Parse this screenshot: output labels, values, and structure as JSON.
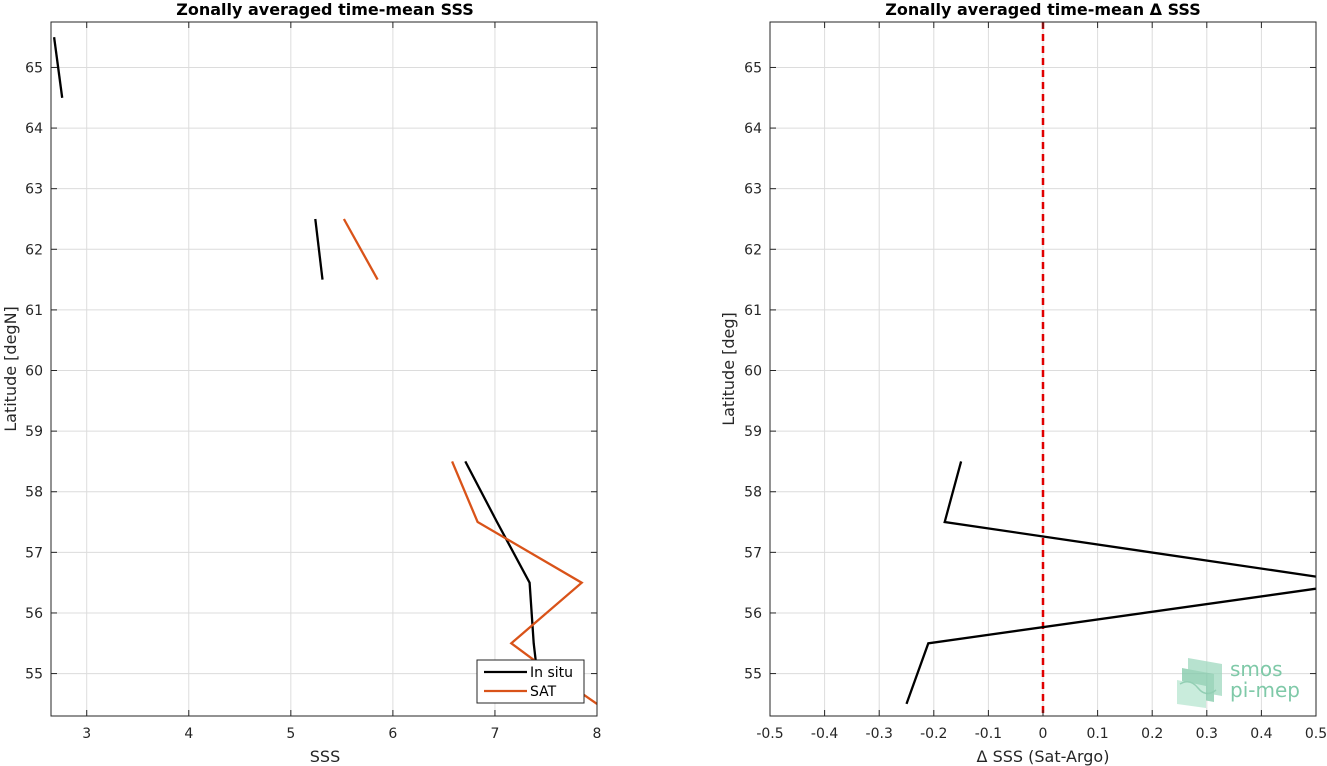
{
  "chart_data": [
    {
      "type": "line",
      "title": "Zonally averaged time-mean SSS",
      "xlabel": "SSS",
      "ylabel": "Latitude [degN]",
      "xlim": [
        2.65,
        8.0
      ],
      "ylim": [
        54.3,
        65.75
      ],
      "xticks": [
        3,
        4,
        5,
        6,
        7,
        8
      ],
      "yticks": [
        55,
        56,
        57,
        58,
        59,
        60,
        61,
        62,
        63,
        64,
        65
      ],
      "grid": true,
      "legend_position": "bottom-right",
      "series": [
        {
          "name": "In situ",
          "color": "#000000",
          "segments": [
            [
              [
                2.68,
                65.5
              ],
              [
                2.76,
                64.5
              ]
            ],
            [
              [
                5.24,
                62.5
              ],
              [
                5.31,
                61.5
              ]
            ],
            [
              [
                6.71,
                58.5
              ],
              [
                7.02,
                57.5
              ],
              [
                7.34,
                56.5
              ],
              [
                7.38,
                55.5
              ],
              [
                7.4,
                55.2
              ]
            ]
          ]
        },
        {
          "name": "SAT",
          "color": "#d95319",
          "segments": [
            [
              [
                5.52,
                62.5
              ],
              [
                5.85,
                61.5
              ]
            ],
            [
              [
                6.58,
                58.5
              ],
              [
                6.83,
                57.5
              ],
              [
                7.85,
                56.5
              ],
              [
                7.16,
                55.5
              ],
              [
                7.4,
                55.2
              ],
              [
                8.0,
                54.5
              ]
            ]
          ]
        }
      ]
    },
    {
      "type": "line",
      "title": "Zonally averaged time-mean Δ SSS",
      "xlabel": "Δ SSS (Sat-Argo)",
      "ylabel": "Latitude [deg]",
      "xlim": [
        -0.5,
        0.5
      ],
      "ylim": [
        54.3,
        65.75
      ],
      "xticks": [
        -0.5,
        -0.4,
        -0.3,
        -0.2,
        -0.1,
        0,
        0.1,
        0.2,
        0.3,
        0.4,
        0.5
      ],
      "yticks": [
        55,
        56,
        57,
        58,
        59,
        60,
        61,
        62,
        63,
        64,
        65
      ],
      "grid": true,
      "reference_line": {
        "x": 0,
        "color": "#e00000",
        "style": "dashed"
      },
      "series": [
        {
          "color": "#000000",
          "segments": [
            [
              [
                -0.25,
                54.5
              ],
              [
                -0.21,
                55.5
              ],
              [
                0.5,
                56.4
              ]
            ],
            [
              [
                0.5,
                56.6
              ],
              [
                -0.18,
                57.5
              ],
              [
                -0.15,
                58.5
              ]
            ]
          ]
        }
      ]
    }
  ],
  "logo": {
    "line1": "smos",
    "line2": "pi-mep"
  }
}
